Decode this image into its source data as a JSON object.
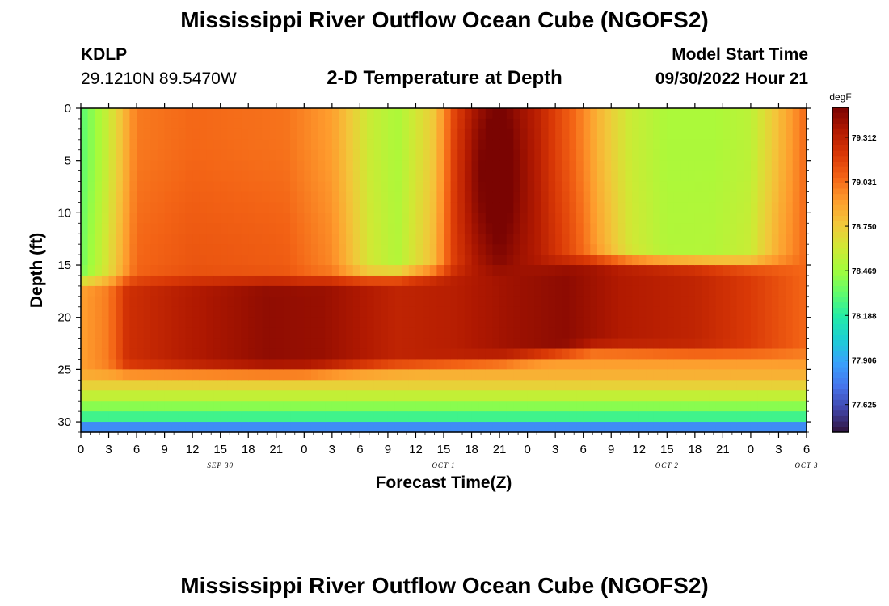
{
  "header": {
    "title": "Mississippi River Outflow Ocean Cube (NGOFS2)",
    "station_id": "KDLP",
    "station_coords": "29.1210N  89.5470W",
    "subtitle": "2-D Temperature at Depth",
    "model_start_label": "Model Start Time",
    "model_start_time": "09/30/2022 Hour 21"
  },
  "footer": {
    "title": "Mississippi River Outflow Ocean Cube (NGOFS2)"
  },
  "colors": {
    "colormap": [
      "#30123b",
      "#4145ab",
      "#4675ed",
      "#39a2fc",
      "#1bcfd4",
      "#24eca6",
      "#61fc6c",
      "#a4fc3b",
      "#d1e834",
      "#f3c63a",
      "#fe9b2d",
      "#f36315",
      "#d93806",
      "#b11901",
      "#7a0402"
    ]
  },
  "chart_data": {
    "type": "heatmap",
    "xlabel": "Forecast Time(Z)",
    "ylabel": "Depth (ft)",
    "x_tick_labels": [
      "0",
      "3",
      "6",
      "9",
      "12",
      "15",
      "18",
      "21",
      "0",
      "3",
      "6",
      "9",
      "12",
      "15",
      "18",
      "21",
      "0",
      "3",
      "6",
      "9",
      "12",
      "15",
      "18",
      "21",
      "0",
      "3",
      "6"
    ],
    "x_date_labels": [
      {
        "label": "SEP 30",
        "hour_offset": 15
      },
      {
        "label": "OCT 1",
        "hour_offset": 39
      },
      {
        "label": "OCT 2",
        "hour_offset": 63
      },
      {
        "label": "OCT 3",
        "hour_offset": 78
      }
    ],
    "x_range_hours": [
      0,
      78
    ],
    "y_ticks": [
      0,
      5,
      10,
      15,
      20,
      25,
      30
    ],
    "y_range": [
      0,
      31
    ],
    "y_inverted": true,
    "colorbar": {
      "unit": "degF",
      "labels": [
        "79.312",
        "79.031",
        "78.750",
        "78.469",
        "78.188",
        "77.906",
        "77.625"
      ],
      "range": [
        77.45,
        79.5
      ]
    },
    "surface_temps": [
      {
        "hour": 0,
        "degF": 78.3
      },
      {
        "hour": 3,
        "degF": 78.6
      },
      {
        "hour": 6,
        "degF": 79.0
      },
      {
        "hour": 12,
        "degF": 79.05
      },
      {
        "hour": 22,
        "degF": 79.02
      },
      {
        "hour": 27,
        "degF": 78.9
      },
      {
        "hour": 31,
        "degF": 78.6
      },
      {
        "hour": 34,
        "degF": 78.5
      },
      {
        "hour": 38,
        "degF": 78.75
      },
      {
        "hour": 40,
        "degF": 79.1
      },
      {
        "hour": 42,
        "degF": 79.25
      },
      {
        "hour": 45,
        "degF": 79.4
      },
      {
        "hour": 49,
        "degF": 79.3
      },
      {
        "hour": 53,
        "degF": 79.05
      },
      {
        "hour": 56,
        "degF": 78.8
      },
      {
        "hour": 59,
        "degF": 78.6
      },
      {
        "hour": 63,
        "degF": 78.5
      },
      {
        "hour": 68,
        "degF": 78.5
      },
      {
        "hour": 72,
        "degF": 78.55
      },
      {
        "hour": 75,
        "degF": 78.8
      },
      {
        "hour": 78,
        "degF": 79.05
      }
    ],
    "band_core_temps": [
      {
        "hour": 0,
        "degF": 78.9
      },
      {
        "hour": 3,
        "degF": 79.0
      },
      {
        "hour": 5,
        "degF": 79.25
      },
      {
        "hour": 12,
        "degF": 79.35
      },
      {
        "hour": 20,
        "degF": 79.44
      },
      {
        "hour": 26,
        "degF": 79.42
      },
      {
        "hour": 34,
        "degF": 79.3
      },
      {
        "hour": 40,
        "degF": 79.33
      },
      {
        "hour": 46,
        "degF": 79.4
      },
      {
        "hour": 52,
        "degF": 79.45
      },
      {
        "hour": 58,
        "degF": 79.35
      },
      {
        "hour": 66,
        "degF": 79.3
      },
      {
        "hour": 72,
        "degF": 79.2
      },
      {
        "hour": 78,
        "degF": 79.05
      }
    ],
    "band_center_depth_ft": [
      {
        "hour": 0,
        "depth": 20.5
      },
      {
        "hour": 24,
        "depth": 20.5
      },
      {
        "hour": 45,
        "depth": 19.5
      },
      {
        "hour": 55,
        "depth": 18.5
      },
      {
        "hour": 78,
        "depth": 19
      }
    ],
    "bottom_temps": [
      {
        "depth": 25,
        "degF": 78.9
      },
      {
        "depth": 26.5,
        "degF": 78.72
      },
      {
        "depth": 28,
        "degF": 78.5
      },
      {
        "depth": 29.5,
        "degF": 78.25
      },
      {
        "depth": 31,
        "degF": 77.6
      }
    ]
  }
}
